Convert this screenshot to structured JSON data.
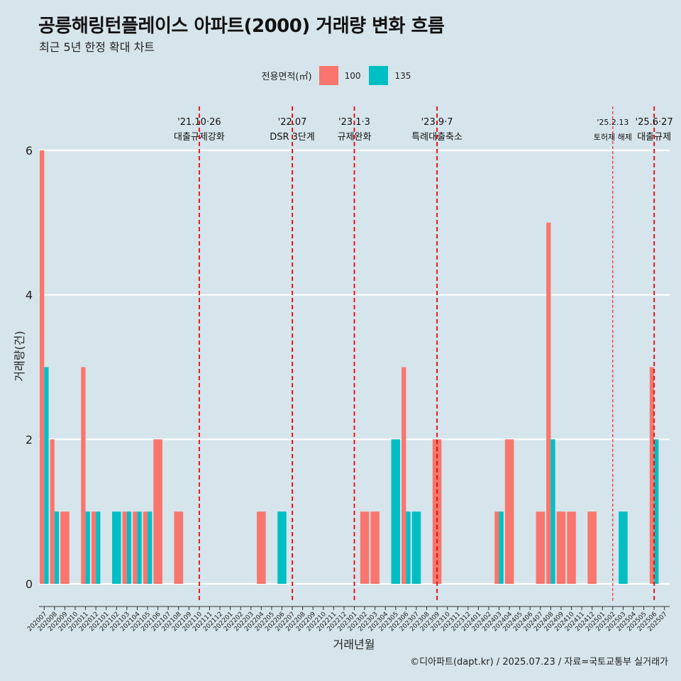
{
  "title": "공릉해링턴플레이스 아파트(2000) 거래량 변화 흐름",
  "subtitle": "최근 5년 한정 확대 차트",
  "caption": "©디아파트(dapt.kr) / 2025.07.23 / 자료=국토교통부 실거래가",
  "colors": {
    "background": "#d6e4eb",
    "s100": "#f8766d",
    "s135": "#00bfc4",
    "event_line": "#ee0000"
  },
  "chart_data": {
    "type": "bar",
    "xlabel": "거래년월",
    "ylabel": "거래량(건)",
    "ylim": [
      0,
      6
    ],
    "yticks": [
      0,
      2,
      4,
      6
    ],
    "grid": true,
    "legend": {
      "title": "전용면적(㎡)",
      "position": "top",
      "entries": [
        "100",
        "135"
      ]
    },
    "categories": [
      "202007",
      "202008",
      "202009",
      "202010",
      "202011",
      "202012",
      "202101",
      "202102",
      "202103",
      "202104",
      "202105",
      "202106",
      "202107",
      "202108",
      "202109",
      "202110",
      "202111",
      "202112",
      "202201",
      "202202",
      "202203",
      "202204",
      "202205",
      "202206",
      "202207",
      "202208",
      "202209",
      "202210",
      "202211",
      "202212",
      "202301",
      "202302",
      "202303",
      "202304",
      "202305",
      "202306",
      "202307",
      "202308",
      "202309",
      "202310",
      "202311",
      "202312",
      "202401",
      "202402",
      "202403",
      "202404",
      "202405",
      "202406",
      "202407",
      "202408",
      "202409",
      "202410",
      "202411",
      "202412",
      "202501",
      "202502",
      "202503",
      "202504",
      "202505",
      "202506",
      "202507"
    ],
    "series": [
      {
        "name": "100",
        "values": [
          6,
          2,
          1,
          0,
          3,
          1,
          0,
          0,
          1,
          1,
          1,
          2,
          0,
          1,
          0,
          0,
          0,
          0,
          0,
          0,
          0,
          1,
          0,
          0,
          0,
          0,
          0,
          0,
          0,
          0,
          0,
          1,
          1,
          0,
          0,
          3,
          0,
          0,
          2,
          0,
          0,
          0,
          0,
          0,
          1,
          2,
          0,
          0,
          1,
          5,
          1,
          1,
          0,
          1,
          0,
          0,
          0,
          0,
          0,
          3,
          0
        ]
      },
      {
        "name": "135",
        "values": [
          3,
          1,
          0,
          0,
          1,
          1,
          0,
          1,
          1,
          1,
          1,
          0,
          0,
          0,
          0,
          0,
          0,
          0,
          0,
          0,
          0,
          0,
          0,
          1,
          0,
          0,
          0,
          0,
          0,
          0,
          0,
          0,
          0,
          0,
          2,
          1,
          1,
          0,
          0,
          0,
          0,
          0,
          0,
          0,
          1,
          0,
          0,
          0,
          0,
          2,
          0,
          0,
          0,
          0,
          0,
          0,
          1,
          0,
          0,
          2,
          0
        ]
      }
    ],
    "events": [
      {
        "date": "'21.10·26",
        "label": "대출규제강화",
        "month": "202110",
        "style": "dashed"
      },
      {
        "date": "'22.07",
        "label": "DSR 3단계",
        "month": "202207",
        "style": "dashed"
      },
      {
        "date": "'23.1·3",
        "label": "규제완화",
        "month": "202301",
        "style": "dashed"
      },
      {
        "date": "'23.9·7",
        "label": "특례대출축소",
        "month": "202309",
        "style": "dashed"
      },
      {
        "date": "'25.2.13",
        "label": "토허제 해제",
        "month": "202502",
        "style": "thin"
      },
      {
        "date": "'25.6·27",
        "label": "대출규제",
        "month": "202506",
        "style": "dashed"
      }
    ]
  }
}
